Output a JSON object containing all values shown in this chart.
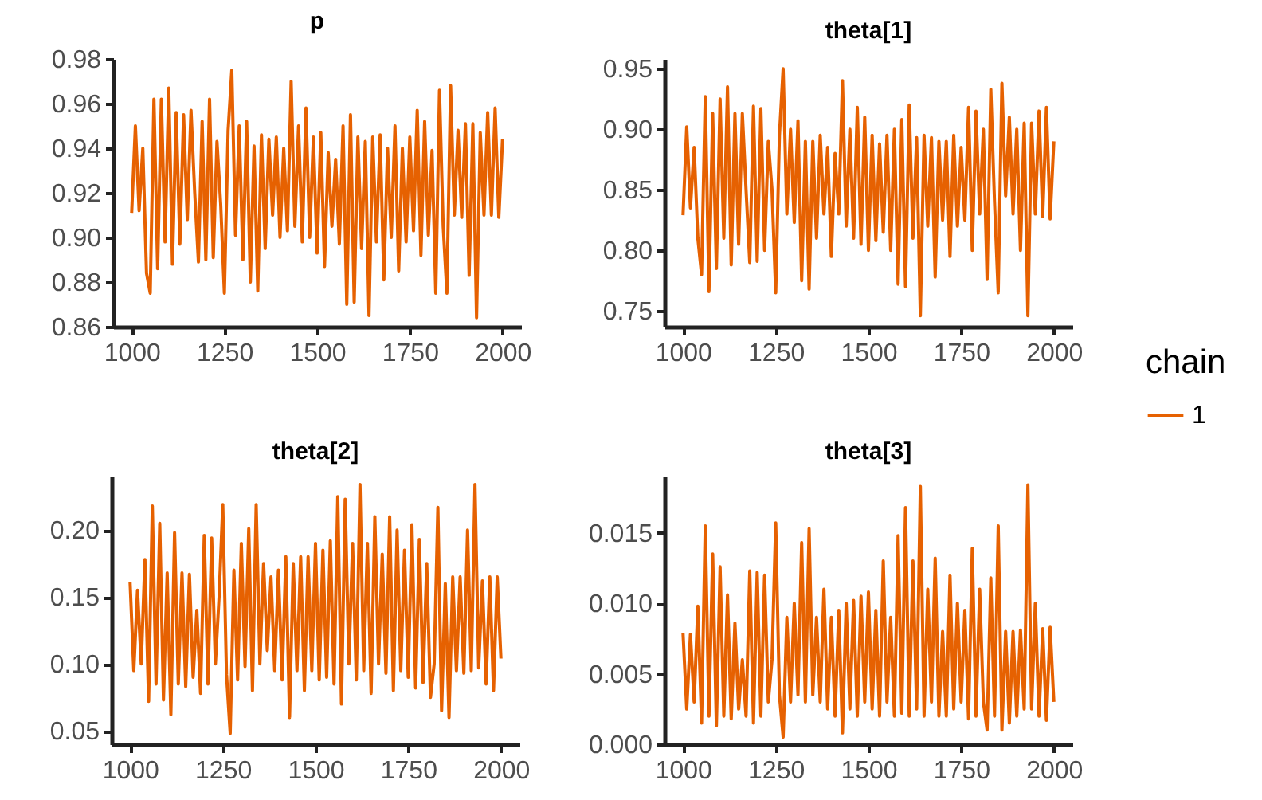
{
  "chart_data": [
    {
      "type": "line",
      "title": "p",
      "xlim": [
        950,
        2050
      ],
      "xticks": [
        1000,
        1250,
        1500,
        1750,
        2000
      ],
      "ylim": [
        0.86,
        0.98
      ],
      "yticks": [
        0.86,
        0.88,
        {
          "value": 0.9,
          "label": "0.90"
        },
        0.92,
        0.94,
        0.96,
        0.98
      ],
      "x": [
        1000,
        1010,
        1020,
        1030,
        1040,
        1050,
        1060,
        1070,
        1080,
        1090,
        1100,
        1110,
        1120,
        1130,
        1140,
        1150,
        1160,
        1170,
        1180,
        1190,
        1200,
        1210,
        1220,
        1230,
        1240,
        1250,
        1260,
        1270,
        1280,
        1290,
        1300,
        1310,
        1320,
        1330,
        1340,
        1350,
        1360,
        1370,
        1380,
        1390,
        1400,
        1410,
        1420,
        1430,
        1440,
        1450,
        1460,
        1470,
        1480,
        1490,
        1500,
        1510,
        1520,
        1530,
        1540,
        1550,
        1560,
        1570,
        1580,
        1590,
        1600,
        1610,
        1620,
        1630,
        1640,
        1650,
        1660,
        1670,
        1680,
        1690,
        1700,
        1710,
        1720,
        1730,
        1740,
        1750,
        1760,
        1770,
        1780,
        1790,
        1800,
        1810,
        1820,
        1830,
        1840,
        1850,
        1860,
        1870,
        1880,
        1890,
        1900,
        1910,
        1920,
        1930,
        1940,
        1950,
        1960,
        1970,
        1980,
        1990,
        2000
      ],
      "series": [
        {
          "color": "#e66101",
          "values": [
            0.911,
            0.95,
            0.912,
            0.94,
            0.884,
            0.875,
            0.962,
            0.886,
            0.962,
            0.898,
            0.967,
            0.888,
            0.956,
            0.897,
            0.955,
            0.908,
            0.957,
            0.92,
            0.889,
            0.952,
            0.89,
            0.962,
            0.891,
            0.943,
            0.915,
            0.875,
            0.948,
            0.975,
            0.901,
            0.95,
            0.89,
            0.952,
            0.88,
            0.941,
            0.876,
            0.946,
            0.895,
            0.944,
            0.91,
            0.945,
            0.9,
            0.94,
            0.903,
            0.97,
            0.905,
            0.95,
            0.898,
            0.958,
            0.9,
            0.945,
            0.893,
            0.947,
            0.887,
            0.938,
            0.905,
            0.935,
            0.897,
            0.95,
            0.87,
            0.955,
            0.871,
            0.945,
            0.895,
            0.943,
            0.865,
            0.945,
            0.898,
            0.946,
            0.881,
            0.94,
            0.9,
            0.95,
            0.885,
            0.94,
            0.898,
            0.945,
            0.903,
            0.957,
            0.892,
            0.952,
            0.901,
            0.939,
            0.875,
            0.966,
            0.905,
            0.875,
            0.968,
            0.91,
            0.948,
            0.909,
            0.951,
            0.883,
            0.951,
            0.864,
            0.947,
            0.91,
            0.956,
            0.91,
            0.958,
            0.909,
            0.944
          ]
        }
      ]
    },
    {
      "type": "line",
      "title": "theta[1]",
      "legend": "right",
      "legend_title": "chain",
      "xlim": [
        950,
        2050
      ],
      "xticks": [
        1000,
        1250,
        1500,
        1750,
        2000
      ],
      "ylim": [
        0.737,
        0.958
      ],
      "yticks": [
        0.75,
        {
          "value": 0.8,
          "label": "0.80"
        },
        0.85,
        {
          "value": 0.9,
          "label": "0.90"
        },
        0.95
      ],
      "x": [
        1000,
        1010,
        1020,
        1030,
        1040,
        1050,
        1060,
        1070,
        1080,
        1090,
        1100,
        1110,
        1120,
        1130,
        1140,
        1150,
        1160,
        1170,
        1180,
        1190,
        1200,
        1210,
        1220,
        1230,
        1240,
        1250,
        1260,
        1270,
        1280,
        1290,
        1300,
        1310,
        1320,
        1330,
        1340,
        1350,
        1360,
        1370,
        1380,
        1390,
        1400,
        1410,
        1420,
        1430,
        1440,
        1450,
        1460,
        1470,
        1480,
        1490,
        1500,
        1510,
        1520,
        1530,
        1540,
        1550,
        1560,
        1570,
        1580,
        1590,
        1600,
        1610,
        1620,
        1630,
        1640,
        1650,
        1660,
        1670,
        1680,
        1690,
        1700,
        1710,
        1720,
        1730,
        1740,
        1750,
        1760,
        1770,
        1780,
        1790,
        1800,
        1810,
        1820,
        1830,
        1840,
        1850,
        1860,
        1870,
        1880,
        1890,
        1900,
        1910,
        1920,
        1930,
        1940,
        1950,
        1960,
        1970,
        1980,
        1990,
        2000
      ],
      "series": [
        {
          "name": "1",
          "color": "#e66101",
          "values": [
            0.829,
            0.902,
            0.835,
            0.885,
            0.81,
            0.78,
            0.927,
            0.766,
            0.913,
            0.785,
            0.925,
            0.81,
            0.935,
            0.788,
            0.913,
            0.805,
            0.913,
            0.85,
            0.79,
            0.919,
            0.791,
            0.917,
            0.8,
            0.89,
            0.85,
            0.765,
            0.895,
            0.95,
            0.83,
            0.9,
            0.823,
            0.907,
            0.775,
            0.89,
            0.768,
            0.89,
            0.81,
            0.895,
            0.83,
            0.885,
            0.795,
            0.88,
            0.83,
            0.94,
            0.82,
            0.9,
            0.81,
            0.918,
            0.805,
            0.91,
            0.8,
            0.895,
            0.808,
            0.888,
            0.815,
            0.895,
            0.8,
            0.9,
            0.772,
            0.908,
            0.77,
            0.92,
            0.81,
            0.893,
            0.746,
            0.895,
            0.82,
            0.893,
            0.778,
            0.89,
            0.825,
            0.89,
            0.795,
            0.895,
            0.82,
            0.885,
            0.825,
            0.918,
            0.8,
            0.915,
            0.83,
            0.9,
            0.776,
            0.933,
            0.84,
            0.765,
            0.938,
            0.845,
            0.91,
            0.83,
            0.9,
            0.8,
            0.905,
            0.746,
            0.905,
            0.83,
            0.915,
            0.828,
            0.918,
            0.826,
            0.89
          ]
        }
      ]
    },
    {
      "type": "line",
      "title": "theta[2]",
      "xlim": [
        950,
        2050
      ],
      "xticks": [
        1000,
        1250,
        1500,
        1750,
        2000
      ],
      "ylim": [
        0.04,
        0.24
      ],
      "yticks": [
        0.05,
        {
          "value": 0.1,
          "label": "0.10"
        },
        0.15,
        {
          "value": 0.2,
          "label": "0.20"
        }
      ],
      "x": [
        1000,
        1010,
        1020,
        1030,
        1040,
        1050,
        1060,
        1070,
        1080,
        1090,
        1100,
        1110,
        1120,
        1130,
        1140,
        1150,
        1160,
        1170,
        1180,
        1190,
        1200,
        1210,
        1220,
        1230,
        1240,
        1250,
        1260,
        1270,
        1280,
        1290,
        1300,
        1310,
        1320,
        1330,
        1340,
        1350,
        1360,
        1370,
        1380,
        1390,
        1400,
        1410,
        1420,
        1430,
        1440,
        1450,
        1460,
        1470,
        1480,
        1490,
        1500,
        1510,
        1520,
        1530,
        1540,
        1550,
        1560,
        1570,
        1580,
        1590,
        1600,
        1610,
        1620,
        1630,
        1640,
        1650,
        1660,
        1670,
        1680,
        1690,
        1700,
        1710,
        1720,
        1730,
        1740,
        1750,
        1760,
        1770,
        1780,
        1790,
        1800,
        1810,
        1820,
        1830,
        1840,
        1850,
        1860,
        1870,
        1880,
        1890,
        1900,
        1910,
        1920,
        1930,
        1940,
        1950,
        1960,
        1970,
        1980,
        1990,
        2000
      ],
      "series": [
        {
          "color": "#e66101",
          "values": [
            0.161,
            0.095,
            0.155,
            0.1,
            0.178,
            0.072,
            0.218,
            0.085,
            0.205,
            0.073,
            0.168,
            0.062,
            0.198,
            0.085,
            0.168,
            0.083,
            0.167,
            0.09,
            0.14,
            0.078,
            0.196,
            0.085,
            0.194,
            0.1,
            0.15,
            0.219,
            0.092,
            0.048,
            0.17,
            0.088,
            0.19,
            0.098,
            0.201,
            0.08,
            0.219,
            0.1,
            0.175,
            0.11,
            0.165,
            0.095,
            0.17,
            0.088,
            0.18,
            0.06,
            0.175,
            0.095,
            0.18,
            0.08,
            0.18,
            0.095,
            0.19,
            0.088,
            0.185,
            0.09,
            0.192,
            0.085,
            0.225,
            0.07,
            0.223,
            0.1,
            0.19,
            0.088,
            0.234,
            0.095,
            0.19,
            0.078,
            0.21,
            0.1,
            0.182,
            0.093,
            0.21,
            0.08,
            0.2,
            0.095,
            0.185,
            0.09,
            0.204,
            0.082,
            0.193,
            0.086,
            0.175,
            0.075,
            0.1,
            0.217,
            0.065,
            0.16,
            0.06,
            0.165,
            0.095,
            0.165,
            0.093,
            0.2,
            0.095,
            0.234,
            0.097,
            0.162,
            0.085,
            0.165,
            0.08,
            0.165,
            0.104
          ]
        }
      ]
    },
    {
      "type": "line",
      "title": "theta[3]",
      "xlim": [
        950,
        2050
      ],
      "xticks": [
        1000,
        1250,
        1500,
        1750,
        2000
      ],
      "ylim": [
        0,
        0.019
      ],
      "yticks": [
        {
          "value": 0,
          "label": "0.000"
        },
        0.005,
        {
          "value": 0.01,
          "label": "0.010"
        },
        0.015
      ],
      "x": [
        1000,
        1010,
        1020,
        1030,
        1040,
        1050,
        1060,
        1070,
        1080,
        1090,
        1100,
        1110,
        1120,
        1130,
        1140,
        1150,
        1160,
        1170,
        1180,
        1190,
        1200,
        1210,
        1220,
        1230,
        1240,
        1250,
        1260,
        1270,
        1280,
        1290,
        1300,
        1310,
        1320,
        1330,
        1340,
        1350,
        1360,
        1370,
        1380,
        1390,
        1400,
        1410,
        1420,
        1430,
        1440,
        1450,
        1460,
        1470,
        1480,
        1490,
        1500,
        1510,
        1520,
        1530,
        1540,
        1550,
        1560,
        1570,
        1580,
        1590,
        1600,
        1610,
        1620,
        1630,
        1640,
        1650,
        1660,
        1670,
        1680,
        1690,
        1700,
        1710,
        1720,
        1730,
        1740,
        1750,
        1760,
        1770,
        1780,
        1790,
        1800,
        1810,
        1820,
        1830,
        1840,
        1850,
        1860,
        1870,
        1880,
        1890,
        1900,
        1910,
        1920,
        1930,
        1940,
        1950,
        1960,
        1970,
        1980,
        1990,
        2000
      ],
      "series": [
        {
          "color": "#e66101",
          "values": [
            0.0079,
            0.0025,
            0.0078,
            0.003,
            0.0098,
            0.0015,
            0.0155,
            0.002,
            0.0135,
            0.0013,
            0.0126,
            0.002,
            0.0106,
            0.0018,
            0.0086,
            0.0025,
            0.006,
            0.002,
            0.0123,
            0.0015,
            0.0122,
            0.002,
            0.012,
            0.003,
            0.006,
            0.0157,
            0.0035,
            0.0005,
            0.009,
            0.003,
            0.01,
            0.0035,
            0.0143,
            0.003,
            0.0153,
            0.0035,
            0.009,
            0.003,
            0.011,
            0.0025,
            0.009,
            0.002,
            0.0095,
            0.0008,
            0.01,
            0.0025,
            0.0102,
            0.002,
            0.0105,
            0.003,
            0.0108,
            0.0025,
            0.0095,
            0.002,
            0.013,
            0.003,
            0.009,
            0.002,
            0.0148,
            0.0022,
            0.0168,
            0.002,
            0.013,
            0.0025,
            0.0183,
            0.002,
            0.011,
            0.003,
            0.0132,
            0.002,
            0.008,
            0.002,
            0.012,
            0.0025,
            0.01,
            0.003,
            0.0095,
            0.0018,
            0.0139,
            0.002,
            0.011,
            0.003,
            0.001,
            0.0118,
            0.002,
            0.0155,
            0.001,
            0.008,
            0.0015,
            0.008,
            0.002,
            0.0081,
            0.0025,
            0.0184,
            0.0025,
            0.01,
            0.002,
            0.0082,
            0.0017,
            0.0083,
            0.003
          ]
        }
      ]
    }
  ]
}
